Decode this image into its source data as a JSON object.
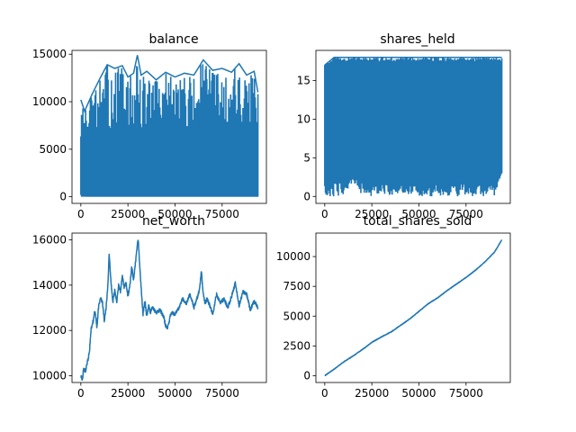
{
  "figure": {
    "line_color": "#1f77b4"
  },
  "chart_data": [
    {
      "type": "line",
      "title": "balance",
      "xlim": [
        -4700,
        98500
      ],
      "ylim": [
        -700,
        15400
      ],
      "xticks": [
        0,
        25000,
        50000,
        75000
      ],
      "yticks": [
        0,
        5000,
        10000,
        15000
      ],
      "xticklabels": [
        "0",
        "25000",
        "50000",
        "75000"
      ],
      "yticklabels": [
        "0",
        "5000",
        "10000",
        "15000"
      ],
      "x_range": [
        0,
        94000
      ],
      "series": [
        {
          "style": "dense-oscillation",
          "low_envelope_x": [
            0,
            3000,
            8000,
            15000,
            25000,
            35000,
            45000,
            55000,
            65000,
            75000,
            85000,
            92000,
            94000
          ],
          "low_envelope_y": [
            300,
            0,
            0,
            0,
            0,
            0,
            0,
            0,
            0,
            0,
            0,
            0,
            0
          ],
          "high_envelope_x": [
            0,
            2000,
            6000,
            10000,
            14000,
            18000,
            22000,
            25000,
            28000,
            30000,
            32000,
            35000,
            40000,
            45000,
            50000,
            55000,
            60000,
            65000,
            70000,
            75000,
            80000,
            84000,
            88000,
            92000,
            94000
          ],
          "high_envelope_y": [
            10200,
            9000,
            10800,
            12400,
            13900,
            13500,
            13800,
            12600,
            13000,
            14900,
            12800,
            13200,
            12300,
            13100,
            12600,
            13000,
            12800,
            14400,
            13300,
            13500,
            13100,
            14000,
            12800,
            13200,
            11000
          ],
          "fill_band_y": [
            0,
            1000
          ]
        }
      ]
    },
    {
      "type": "line",
      "title": "shares_held",
      "xlim": [
        -4700,
        98500
      ],
      "ylim": [
        -0.9,
        18.9
      ],
      "xticks": [
        0,
        25000,
        50000,
        75000
      ],
      "yticks": [
        0,
        5,
        10,
        15
      ],
      "xticklabels": [
        "0",
        "25000",
        "50000",
        "75000"
      ],
      "yticklabels": [
        "0",
        "5",
        "10",
        "15"
      ],
      "x_range": [
        0,
        94000
      ],
      "series": [
        {
          "style": "dense-oscillation",
          "low_envelope_x": [
            0,
            5000,
            10000,
            15000,
            20000,
            25000,
            30000,
            40000,
            50000,
            60000,
            70000,
            80000,
            90000,
            94000
          ],
          "low_envelope_y": [
            0,
            0,
            0,
            2,
            0,
            0,
            0,
            0,
            0,
            0,
            0,
            0,
            0,
            3
          ],
          "high_envelope_x": [
            0,
            5000,
            10000,
            15000,
            20000,
            30000,
            40000,
            50000,
            60000,
            70000,
            80000,
            90000,
            94000
          ],
          "high_envelope_y": [
            17,
            18,
            18,
            18,
            18,
            18,
            18,
            18,
            18,
            18,
            18,
            18,
            18
          ],
          "fill_band_y": [
            3,
            17
          ]
        }
      ]
    },
    {
      "type": "line",
      "title": "net_worth",
      "xlim": [
        -4700,
        98500
      ],
      "ylim": [
        9700,
        16300
      ],
      "xticks": [
        0,
        25000,
        50000,
        75000
      ],
      "yticks": [
        10000,
        12000,
        14000,
        16000
      ],
      "xticklabels": [
        "0",
        "25000",
        "50000",
        "75000"
      ],
      "yticklabels": [
        "10000",
        "12000",
        "14000",
        "16000"
      ],
      "series": [
        {
          "x": [
            0,
            800,
            1500,
            2500,
            3500,
            4500,
            5500,
            6500,
            7500,
            8500,
            9500,
            10500,
            11500,
            12500,
            13500,
            14500,
            15000,
            16000,
            17000,
            18000,
            19000,
            20000,
            21000,
            22000,
            23000,
            24000,
            25000,
            26000,
            27000,
            28000,
            29000,
            30000,
            30500,
            31000,
            32000,
            33000,
            34000,
            35000,
            36000,
            37000,
            38000,
            40000,
            42000,
            44000,
            45000,
            46000,
            48000,
            50000,
            52000,
            54000,
            56000,
            58000,
            60000,
            62000,
            63000,
            64000,
            65000,
            66000,
            67000,
            68000,
            70000,
            72000,
            74000,
            76000,
            78000,
            80000,
            82000,
            84000,
            86000,
            88000,
            90000,
            92000,
            94000
          ],
          "y": [
            10000,
            9850,
            10300,
            10200,
            10600,
            11000,
            12100,
            12400,
            12900,
            12100,
            13100,
            13500,
            13200,
            12400,
            13100,
            14200,
            15400,
            14100,
            13300,
            13800,
            13200,
            14000,
            13700,
            14400,
            13900,
            14100,
            13500,
            14000,
            14800,
            14200,
            15000,
            15800,
            16000,
            15200,
            13900,
            12700,
            13300,
            12600,
            13100,
            12800,
            13000,
            12800,
            12900,
            12600,
            12200,
            12100,
            12800,
            12700,
            13000,
            13400,
            13200,
            13600,
            13000,
            13500,
            13800,
            14600,
            13600,
            13200,
            13400,
            13200,
            12700,
            13600,
            13200,
            13400,
            13000,
            13500,
            14100,
            13100,
            13700,
            13600,
            12900,
            13300,
            13000
          ]
        }
      ]
    },
    {
      "type": "line",
      "title": "total_shares_sold",
      "xlim": [
        -4700,
        98500
      ],
      "ylim": [
        -570,
        11970
      ],
      "xticks": [
        0,
        25000,
        50000,
        75000
      ],
      "yticks": [
        0,
        2500,
        5000,
        7500,
        10000
      ],
      "xticklabels": [
        "0",
        "25000",
        "50000",
        "75000"
      ],
      "yticklabels": [
        "0",
        "2500",
        "5000",
        "7500",
        "10000"
      ],
      "series": [
        {
          "x": [
            0,
            5000,
            10000,
            15000,
            20000,
            25000,
            30000,
            35000,
            40000,
            45000,
            50000,
            55000,
            60000,
            65000,
            70000,
            75000,
            80000,
            85000,
            90000,
            94000
          ],
          "y": [
            0,
            550,
            1150,
            1650,
            2200,
            2800,
            3250,
            3650,
            4200,
            4750,
            5400,
            6050,
            6550,
            7150,
            7700,
            8250,
            8850,
            9550,
            10350,
            11400
          ]
        }
      ]
    }
  ]
}
